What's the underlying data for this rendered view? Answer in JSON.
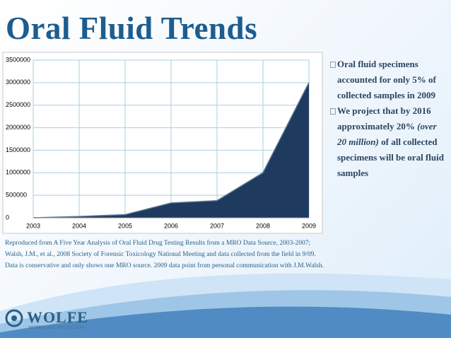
{
  "chart_data": {
    "type": "area",
    "title": "Oral Fluid Trends",
    "x": [
      2003,
      2004,
      2005,
      2006,
      2007,
      2008,
      2009
    ],
    "values": [
      0,
      30000,
      70000,
      330000,
      380000,
      1000000,
      3000000
    ],
    "color": "#1f3a5f",
    "xlim": [
      2003,
      2009
    ],
    "xticks": [
      2003,
      2004,
      2005,
      2006,
      2007,
      2008,
      2009
    ],
    "ylim": [
      0,
      3500000
    ],
    "yticks": [
      0,
      500000,
      1000000,
      1500000,
      2000000,
      2500000,
      3000000,
      3500000
    ],
    "grid": true
  },
  "bullets": [
    [
      "Oral fluid specimens accounted for only 5% of collected samples in 2009"
    ],
    [
      "We project that by 2016 approximately 20% ",
      "(over 20 million)",
      " of all collected specimens will be oral fluid samples"
    ]
  ],
  "notes": [
    "Reproduced from A Five Year Analysis of Oral Fluid Drug Testing Results from a MRO Data Source, 2003-2007;",
    "Walsh, J.M., et al., 2008 Society of Forensic Toxicology National Meeting and data collected from the field in 9/09.",
    "Data is conservative and only shows one MRO source.  2009 data point from personal communication with J.M.Walsh."
  ],
  "logo": {
    "name": "WOLFE",
    "tagline": "WORKPLACE PROTECTION"
  }
}
